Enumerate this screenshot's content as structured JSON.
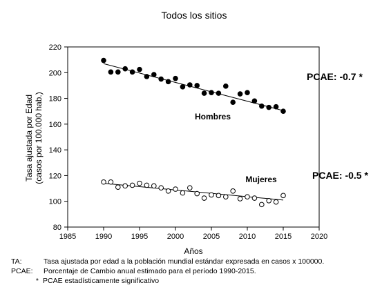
{
  "chart_data": {
    "type": "scatter",
    "title": "Todos los sitios",
    "xlabel": "Años",
    "ylabel_line1": "Tasa ajustada por Edad",
    "ylabel_line2": "(casos por 100.000 hab.)",
    "xlim": [
      1985,
      2020
    ],
    "ylim": [
      80,
      220
    ],
    "xticks": [
      1985,
      1990,
      1995,
      2000,
      2005,
      2010,
      2015,
      2020
    ],
    "yticks": [
      80,
      100,
      120,
      140,
      160,
      180,
      200,
      220
    ],
    "grid": false,
    "series": [
      {
        "name": "Hombres",
        "marker": "filled-circle",
        "x": [
          1990,
          1991,
          1992,
          1993,
          1994,
          1995,
          1996,
          1997,
          1998,
          1999,
          2000,
          2001,
          2002,
          2003,
          2004,
          2005,
          2006,
          2007,
          2008,
          2009,
          2010,
          2011,
          2012,
          2013,
          2014,
          2015
        ],
        "y": [
          209.5,
          200.5,
          200.5,
          203,
          200.5,
          202.5,
          197,
          198.5,
          195,
          193,
          195.5,
          189,
          190.5,
          190,
          184,
          184.5,
          184,
          189.5,
          177,
          183.5,
          184.5,
          178,
          174,
          173,
          173.5,
          170
        ],
        "trend": [
          207,
          170.5
        ],
        "pcae": "PCAE: -0.7 *"
      },
      {
        "name": "Mujeres",
        "marker": "open-circle",
        "x": [
          1990,
          1991,
          1992,
          1993,
          1994,
          1995,
          1996,
          1997,
          1998,
          1999,
          2000,
          2001,
          2002,
          2003,
          2004,
          2005,
          2006,
          2007,
          2008,
          2009,
          2010,
          2011,
          2012,
          2013,
          2014,
          2015
        ],
        "y": [
          115,
          115,
          111,
          112,
          112.5,
          114,
          112.5,
          112,
          110.5,
          108,
          109.5,
          106.5,
          110.5,
          106,
          102.5,
          105,
          104.5,
          103.5,
          108,
          102,
          103.5,
          102.5,
          97.5,
          100.5,
          99.5,
          104.5
        ],
        "trend": [
          114,
          101
        ],
        "pcae": "PCAE: -0.5 *"
      }
    ]
  },
  "footnotes": {
    "ta_abbr": "TA:",
    "ta_text": "Tasa ajustada por edad a la población mundial estándar expresada en casos x 100000.",
    "pcae_abbr": "PCAE:",
    "pcae_text": "Porcentaje de Cambio anual  estimado para el período 1990-2015.",
    "star_abbr": "*",
    "star_text": "PCAE estadísticamente significativo"
  }
}
